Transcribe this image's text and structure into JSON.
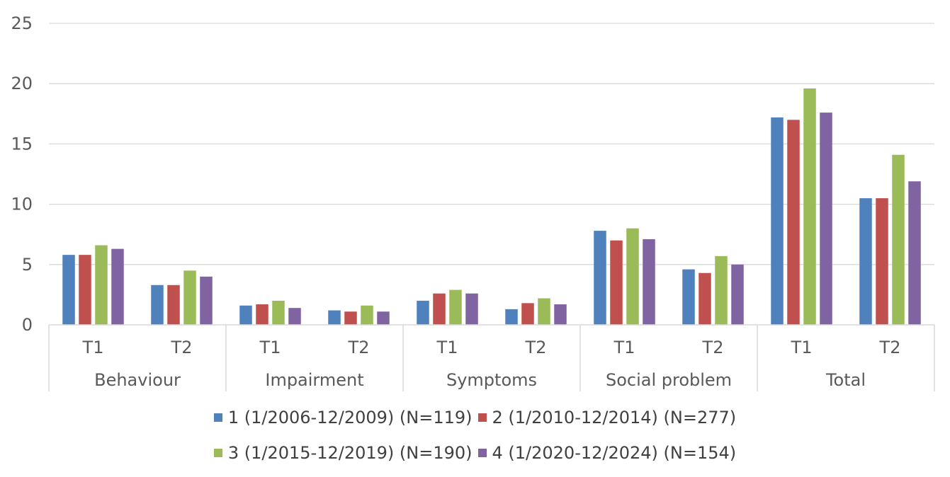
{
  "chart_data": {
    "type": "bar",
    "groups": [
      {
        "label": "Behaviour",
        "categories": [
          "T1",
          "T2"
        ]
      },
      {
        "label": "Impairment",
        "categories": [
          "T1",
          "T2"
        ]
      },
      {
        "label": "Symptoms",
        "categories": [
          "T1",
          "T2"
        ]
      },
      {
        "label": "Social problem",
        "categories": [
          "T1",
          "T2"
        ]
      },
      {
        "label": "Total",
        "categories": [
          "T1",
          "T2"
        ]
      }
    ],
    "series": [
      {
        "name": "1 (1/2006-12/2009) (N=119)",
        "color": "#4f81bd",
        "values": [
          5.8,
          3.3,
          1.6,
          1.2,
          2.0,
          1.3,
          7.8,
          4.6,
          17.2,
          10.5
        ]
      },
      {
        "name": "2 (1/2010-12/2014) (N=277)",
        "color": "#c0504d",
        "values": [
          5.8,
          3.3,
          1.7,
          1.1,
          2.6,
          1.8,
          7.0,
          4.3,
          17.0,
          10.5
        ]
      },
      {
        "name": "3 (1/2015-12/2019) (N=190)",
        "color": "#9bbb59",
        "values": [
          6.6,
          4.5,
          2.0,
          1.6,
          2.9,
          2.2,
          8.0,
          5.7,
          19.6,
          14.1
        ]
      },
      {
        "name": "4 (1/2020-12/2024) (N=154)",
        "color": "#8064a2",
        "values": [
          6.3,
          4.0,
          1.4,
          1.1,
          2.6,
          1.7,
          7.1,
          5.0,
          17.6,
          11.9
        ]
      }
    ],
    "yticks": [
      "0",
      "5",
      "10",
      "15",
      "20",
      "25"
    ],
    "ylim": [
      0,
      25
    ],
    "grid": true,
    "legend_position": "bottom"
  }
}
